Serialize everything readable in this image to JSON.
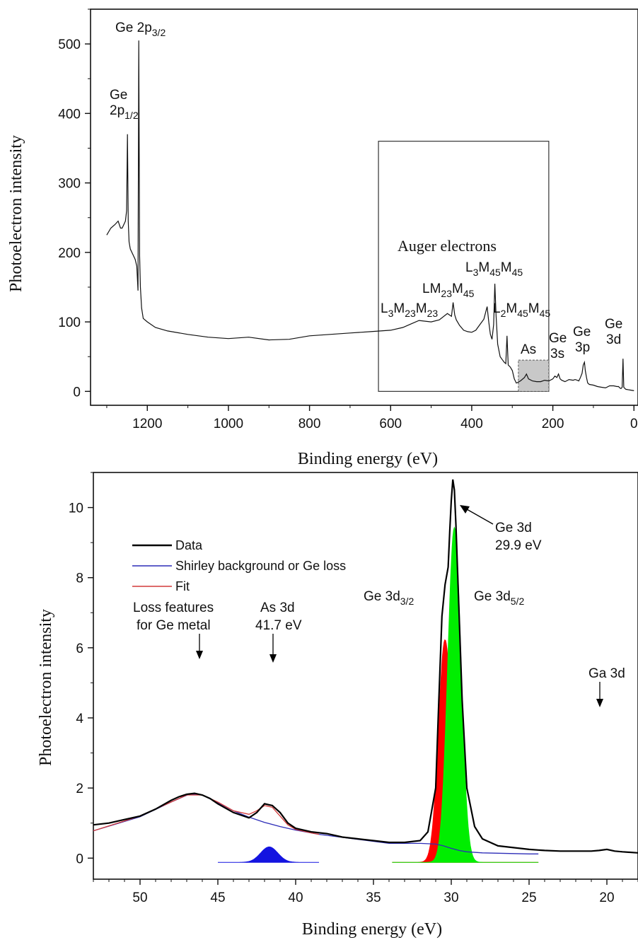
{
  "chart_data": [
    {
      "type": "line",
      "xlabel": "Binding energy (eV)",
      "ylabel": "Photoelectron intensity",
      "xlim": [
        1340,
        -10
      ],
      "ylim": [
        -20,
        550
      ],
      "x_ticks": [
        "1200",
        "1000",
        "800",
        "600",
        "400",
        "200",
        "0"
      ],
      "y_ticks": [
        "0",
        "100",
        "200",
        "300",
        "400",
        "500"
      ],
      "grid": false,
      "series": [
        {
          "x": [
            1300,
            1290,
            1280,
            1272,
            1266,
            1262,
            1258,
            1254,
            1251,
            1249,
            1247,
            1245,
            1242,
            1238,
            1234,
            1230,
            1226,
            1223,
            1221,
            1219,
            1217,
            1214,
            1210,
            1200,
            1180,
            1150,
            1100,
            1050,
            1000,
            950,
            900,
            850,
            800,
            750,
            700,
            650,
            600,
            570,
            550,
            530,
            500,
            480,
            460,
            450,
            446,
            442,
            438,
            430,
            420,
            410,
            400,
            390,
            380,
            370,
            362,
            358,
            354,
            350,
            346,
            343,
            340,
            336,
            330,
            325,
            320,
            316,
            313,
            310,
            305,
            300,
            295,
            290,
            280,
            270,
            265,
            260,
            250,
            240,
            230,
            220,
            210,
            200,
            195,
            190,
            186,
            182,
            178,
            170,
            160,
            150,
            145,
            140,
            136,
            132,
            128,
            125,
            122,
            120,
            117,
            114,
            110,
            100,
            90,
            80,
            70,
            60,
            50,
            42,
            38,
            35,
            32,
            29,
            27,
            25,
            22,
            20,
            10,
            0
          ],
          "y": [
            225,
            235,
            240,
            245,
            235,
            235,
            240,
            245,
            260,
            370,
            245,
            215,
            205,
            200,
            195,
            190,
            180,
            145,
            505,
            195,
            150,
            120,
            105,
            100,
            92,
            87,
            82,
            78,
            76,
            78,
            74,
            75,
            80,
            82,
            84,
            86,
            88,
            92,
            97,
            102,
            100,
            103,
            112,
            108,
            128,
            110,
            103,
            95,
            88,
            86,
            85,
            88,
            96,
            104,
            122,
            100,
            82,
            75,
            96,
            155,
            110,
            68,
            50,
            46,
            42,
            40,
            80,
            38,
            35,
            30,
            18,
            12,
            15,
            20,
            25,
            18,
            15,
            14,
            14,
            16,
            15,
            18,
            22,
            20,
            25,
            18,
            16,
            14,
            17,
            16,
            17,
            16,
            15,
            20,
            26,
            38,
            42,
            30,
            20,
            12,
            10,
            9,
            7,
            6,
            5,
            8,
            8,
            7,
            7,
            5,
            4,
            6,
            47,
            6,
            4,
            3,
            2,
            1
          ]
        }
      ],
      "annotations": {
        "auger": "Auger electrons",
        "as": "As",
        "ge2p32": {
          "a": "Ge 2p",
          "sub": "3/2"
        },
        "ge2p12": {
          "a": "Ge",
          "b": "2p",
          "sub": "1/2"
        },
        "l3m23m23": {
          "a": "L",
          "s1": "3",
          "b": "M",
          "s2": "23",
          "c": "M",
          "s3": "23"
        },
        "lm23m45": {
          "a": "LM",
          "s1": "23",
          "b": "M",
          "s2": "45"
        },
        "l3m45m45": {
          "a": "L",
          "s1": "3",
          "b": "M",
          "s2": "45",
          "c": "M",
          "s3": "45"
        },
        "l2m45m45": {
          "a": "L",
          "s1": "2",
          "b": "M",
          "s2": "45",
          "c": "M",
          "s3": "45"
        },
        "ge3s": {
          "a": "Ge",
          "b": "3s"
        },
        "ge3p": {
          "a": "Ge",
          "b": "3p"
        },
        "ge3d": {
          "a": "Ge",
          "b": "3d"
        }
      }
    },
    {
      "type": "line",
      "xlabel": "Binding energy (eV)",
      "ylabel": "Photoelectron intensity",
      "xlim": [
        53,
        18
      ],
      "ylim": [
        -0.6,
        11
      ],
      "x_ticks": [
        "50",
        "45",
        "40",
        "35",
        "30",
        "25",
        "20"
      ],
      "y_ticks": [
        "0",
        "2",
        "4",
        "6",
        "8",
        "10"
      ],
      "grid": false,
      "legend_position": "top-left",
      "series": [
        {
          "name": "Data",
          "color": "#000000",
          "x": [
            53,
            52,
            51,
            50,
            49,
            48,
            47.5,
            47,
            46.5,
            46,
            45.5,
            45,
            44,
            43,
            42.5,
            42,
            41.5,
            41,
            40.5,
            40,
            39,
            38,
            37,
            36,
            35,
            34,
            33,
            32,
            31.5,
            31,
            30.8,
            30.6,
            30.4,
            30.2,
            30.1,
            30.0,
            29.9,
            29.8,
            29.7,
            29.5,
            29.3,
            29,
            28.5,
            28,
            27,
            26,
            25,
            24,
            23,
            22,
            21,
            20.5,
            20,
            19.5,
            19,
            18
          ],
          "y": [
            0.95,
            1.0,
            1.1,
            1.2,
            1.4,
            1.65,
            1.75,
            1.82,
            1.85,
            1.8,
            1.7,
            1.55,
            1.3,
            1.15,
            1.3,
            1.55,
            1.5,
            1.3,
            1.0,
            0.85,
            0.75,
            0.7,
            0.6,
            0.55,
            0.5,
            0.45,
            0.45,
            0.5,
            0.75,
            2.0,
            4.5,
            6.9,
            7.8,
            8.3,
            9.3,
            10.2,
            10.8,
            10.5,
            9.5,
            7.0,
            4.5,
            2.0,
            0.9,
            0.55,
            0.35,
            0.3,
            0.25,
            0.22,
            0.2,
            0.2,
            0.2,
            0.22,
            0.25,
            0.2,
            0.18,
            0.15
          ]
        },
        {
          "name": "Shirley background or Ge loss",
          "color": "#2d2db8",
          "x": [
            53,
            50,
            48,
            46.8,
            46,
            45,
            44,
            43,
            42,
            41,
            40,
            39,
            38.5,
            34,
            32,
            31,
            30.5,
            30,
            29.5,
            29,
            28,
            27,
            26,
            25,
            24.4
          ],
          "y": [
            0.78,
            1.18,
            1.6,
            1.83,
            1.8,
            1.58,
            1.35,
            1.17,
            1.02,
            0.9,
            0.8,
            0.72,
            0.68,
            0.42,
            0.42,
            0.4,
            0.35,
            0.28,
            0.22,
            0.18,
            0.15,
            0.14,
            0.13,
            0.12,
            0.12
          ]
        },
        {
          "name": "Fit",
          "color": "#d23a3a",
          "x": [
            53,
            50,
            48,
            47,
            46,
            45,
            44,
            43,
            42.5,
            42,
            41.5,
            41,
            40.5,
            40,
            39,
            38.5
          ],
          "y": [
            0.78,
            1.2,
            1.6,
            1.8,
            1.8,
            1.6,
            1.35,
            1.25,
            1.35,
            1.5,
            1.45,
            1.2,
            0.95,
            0.82,
            0.72,
            0.68
          ]
        }
      ],
      "components": [
        {
          "label": "As 3d",
          "center": 41.7,
          "height": 0.44,
          "sigma": 0.55,
          "color": "#1414e0",
          "range": [
            45,
            38.5
          ]
        },
        {
          "label": "Ge 3d 3/2",
          "center": 30.4,
          "height": 6.35,
          "sigma": 0.42,
          "color": "#ff0000",
          "range": [
            33.8,
            24.4
          ]
        },
        {
          "label": "Ge 3d 5/2",
          "center": 29.8,
          "height": 9.55,
          "sigma": 0.42,
          "color": "#00ee00",
          "range": [
            33.8,
            24.4
          ]
        }
      ],
      "annotations": {
        "loss_a": "Loss features",
        "loss_b": "for Ge metal",
        "as3d_a": "As 3d",
        "as3d_b": "41.7 eV",
        "ge3d_a": "Ge 3d",
        "ge3d_b": "29.9 eV",
        "ge3d32": {
          "a": "Ge 3d",
          "sub": "3/2"
        },
        "ge3d52": {
          "a": "Ge 3d",
          "sub": "5/2"
        },
        "ga3d": "Ga 3d"
      }
    }
  ]
}
